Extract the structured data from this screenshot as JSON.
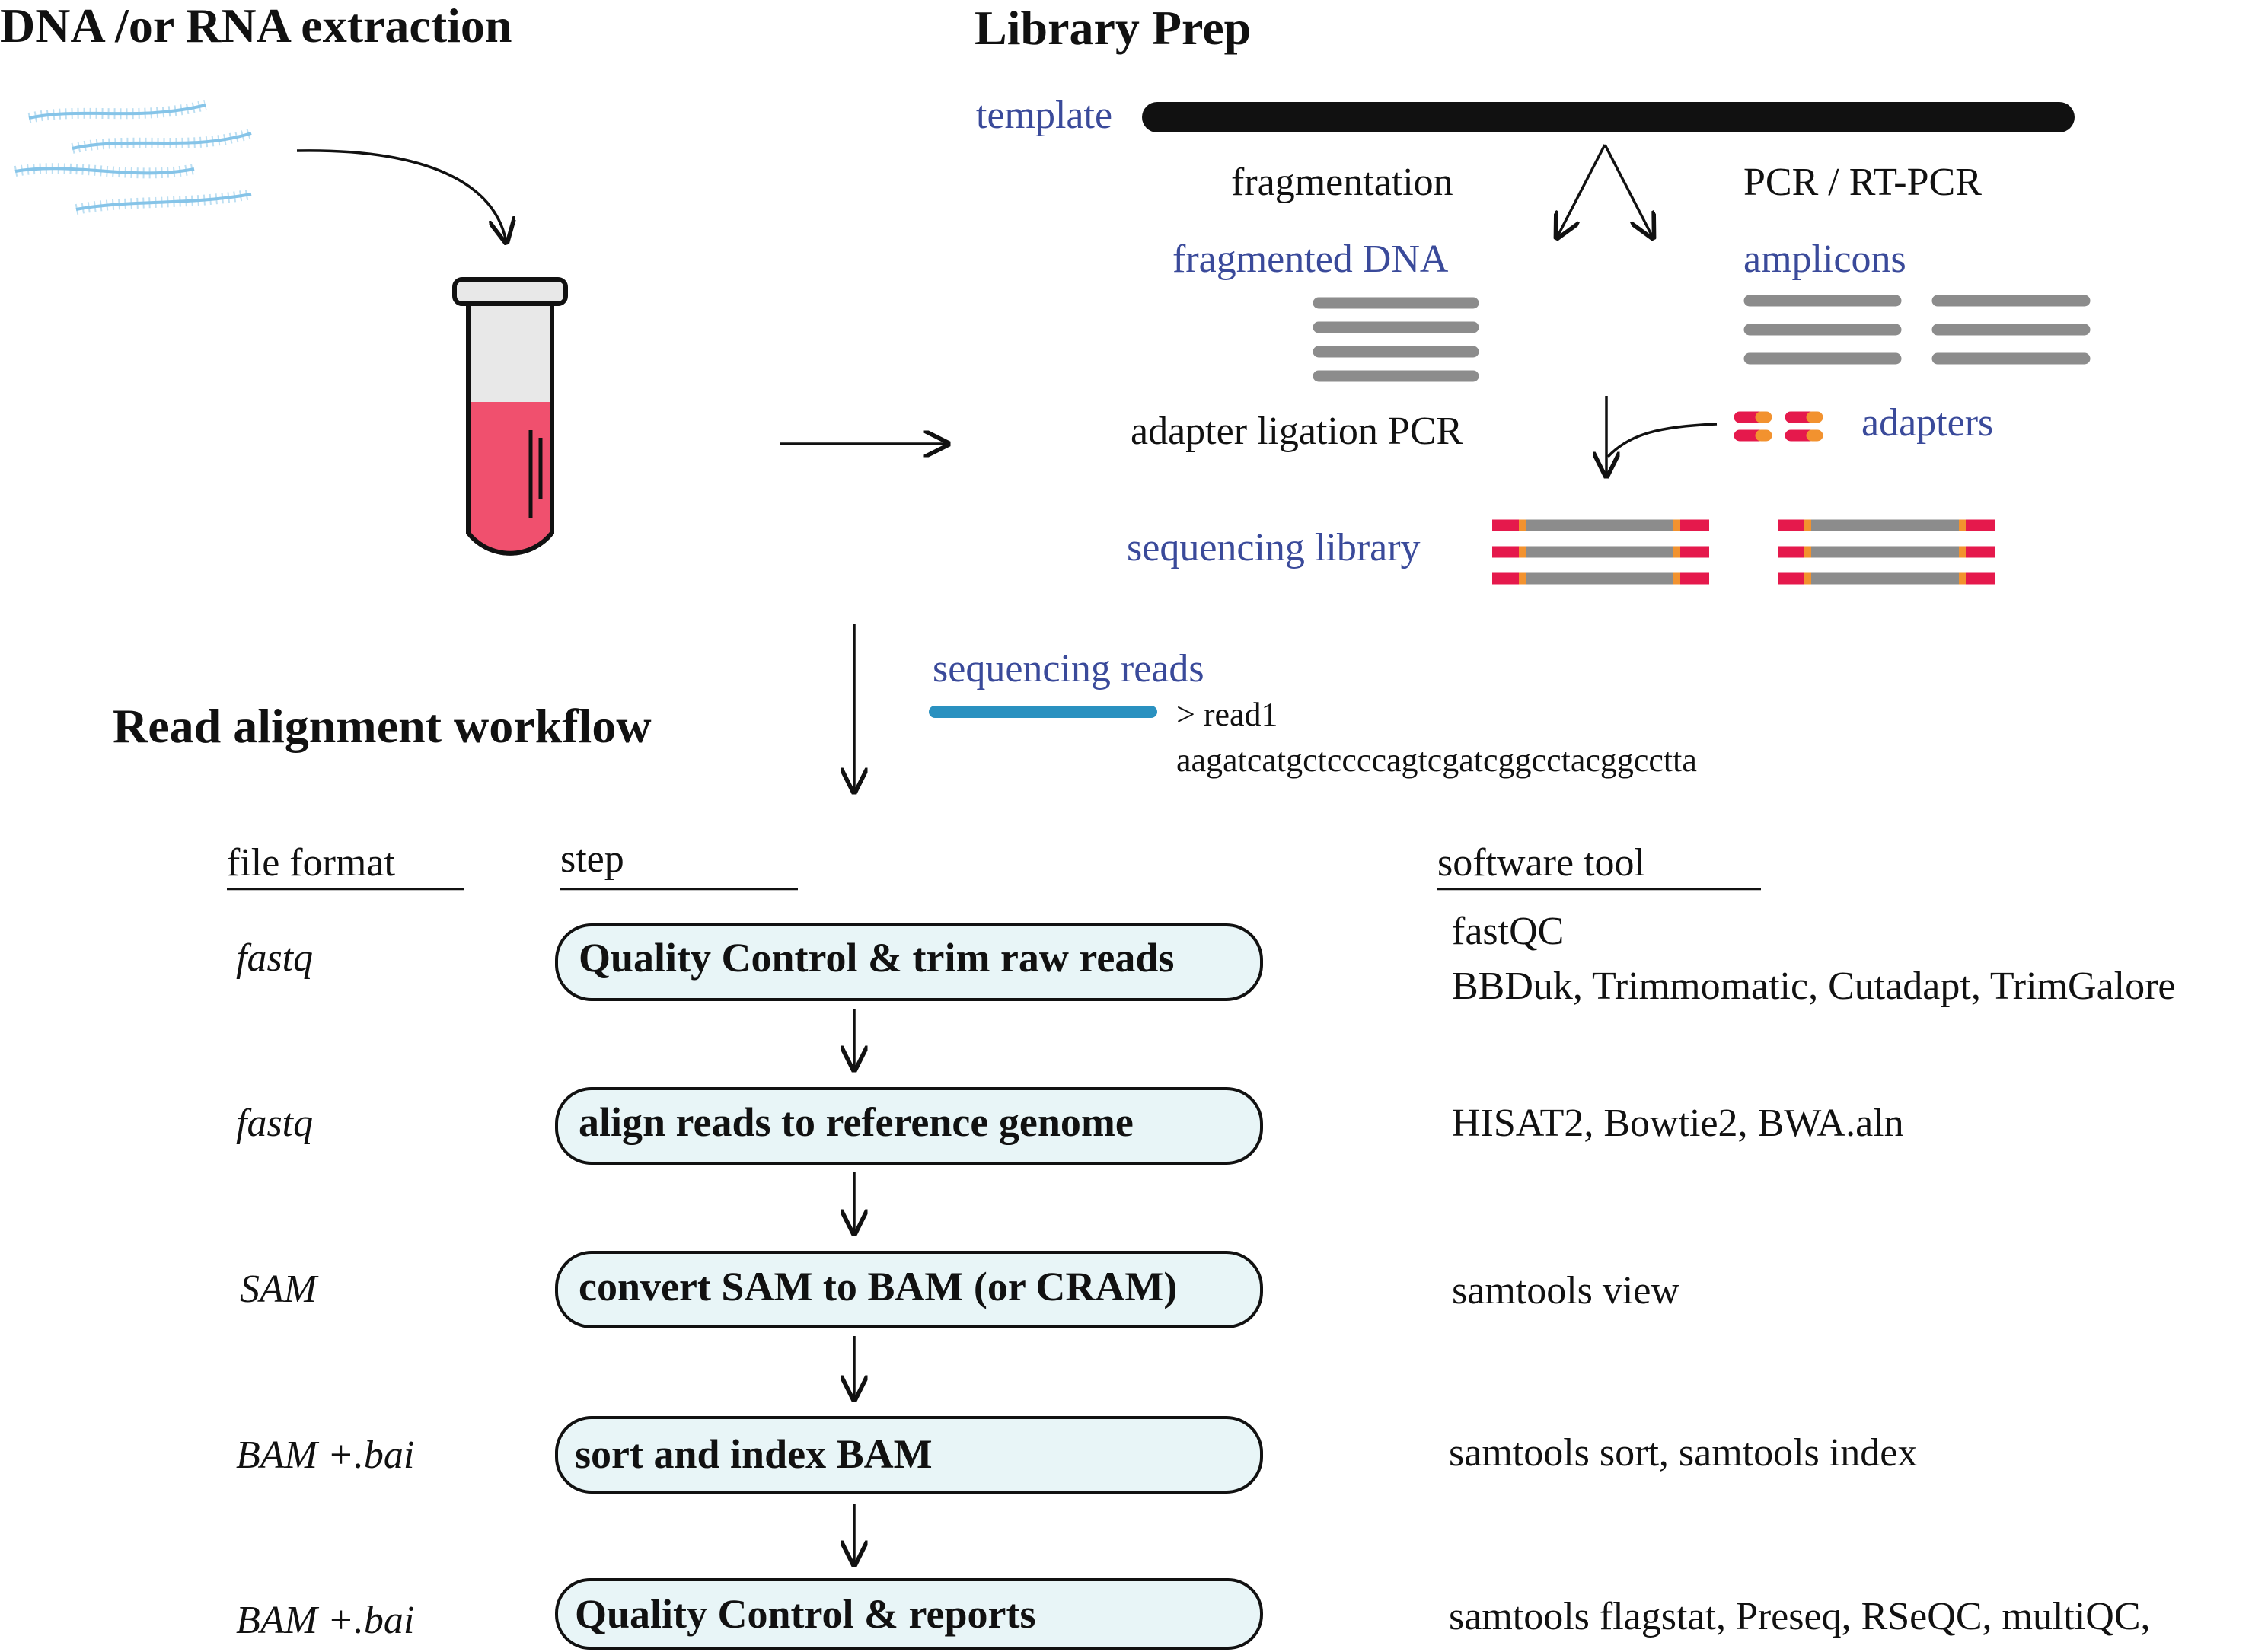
{
  "colors": {
    "blue_text": "#3a4a9a",
    "black": "#111111",
    "gray_bar": "#8c8c8c",
    "red_adapter": "#e5194c",
    "orange_adapter": "#f2922f",
    "tube_liquid": "#f0506e",
    "tube_empty": "#e8e8e8",
    "box_fill": "#e8f5f7",
    "read_bar": "#2a91c0",
    "dna_strand": "#86c4e8"
  },
  "extraction": {
    "title": "DNA /or RNA extraction"
  },
  "library_prep": {
    "title": "Library Prep",
    "template_label": "template",
    "fragmentation_label": "fragmentation",
    "pcr_label": "PCR / RT-PCR",
    "fragmented_label": "fragmented DNA",
    "amplicons_label": "amplicons",
    "ligation_label": "adapter ligation  PCR",
    "adapters_label": "adapters",
    "library_label": "sequencing library"
  },
  "reads": {
    "label": "sequencing reads",
    "read_id": "> read1",
    "sequence": "aagatcatgctccccagtcgatcggcctacggcctta"
  },
  "workflow": {
    "title": "Read alignment workflow",
    "headers": {
      "format": "file format",
      "step": "step",
      "tool": "software tool"
    },
    "rows": [
      {
        "format": "fastq",
        "step": "Quality Control & trim raw reads",
        "tools": [
          "fastQC",
          "BBDuk, Trimmomatic, Cutadapt, TrimGalore"
        ]
      },
      {
        "format": "fastq",
        "step": "align reads to reference genome",
        "tools": [
          "HISAT2, Bowtie2, BWA.aln"
        ]
      },
      {
        "format": "SAM",
        "step": "convert SAM to BAM (or CRAM)",
        "tools": [
          "samtools view"
        ]
      },
      {
        "format": "BAM +.bai",
        "step": "sort and index BAM",
        "tools": [
          "samtools sort, samtools index"
        ]
      },
      {
        "format": "BAM +.bai",
        "step": "Quality Control & reports",
        "tools": [
          "samtools flagstat, Preseq, RSeQC, multiQC,"
        ]
      }
    ]
  }
}
